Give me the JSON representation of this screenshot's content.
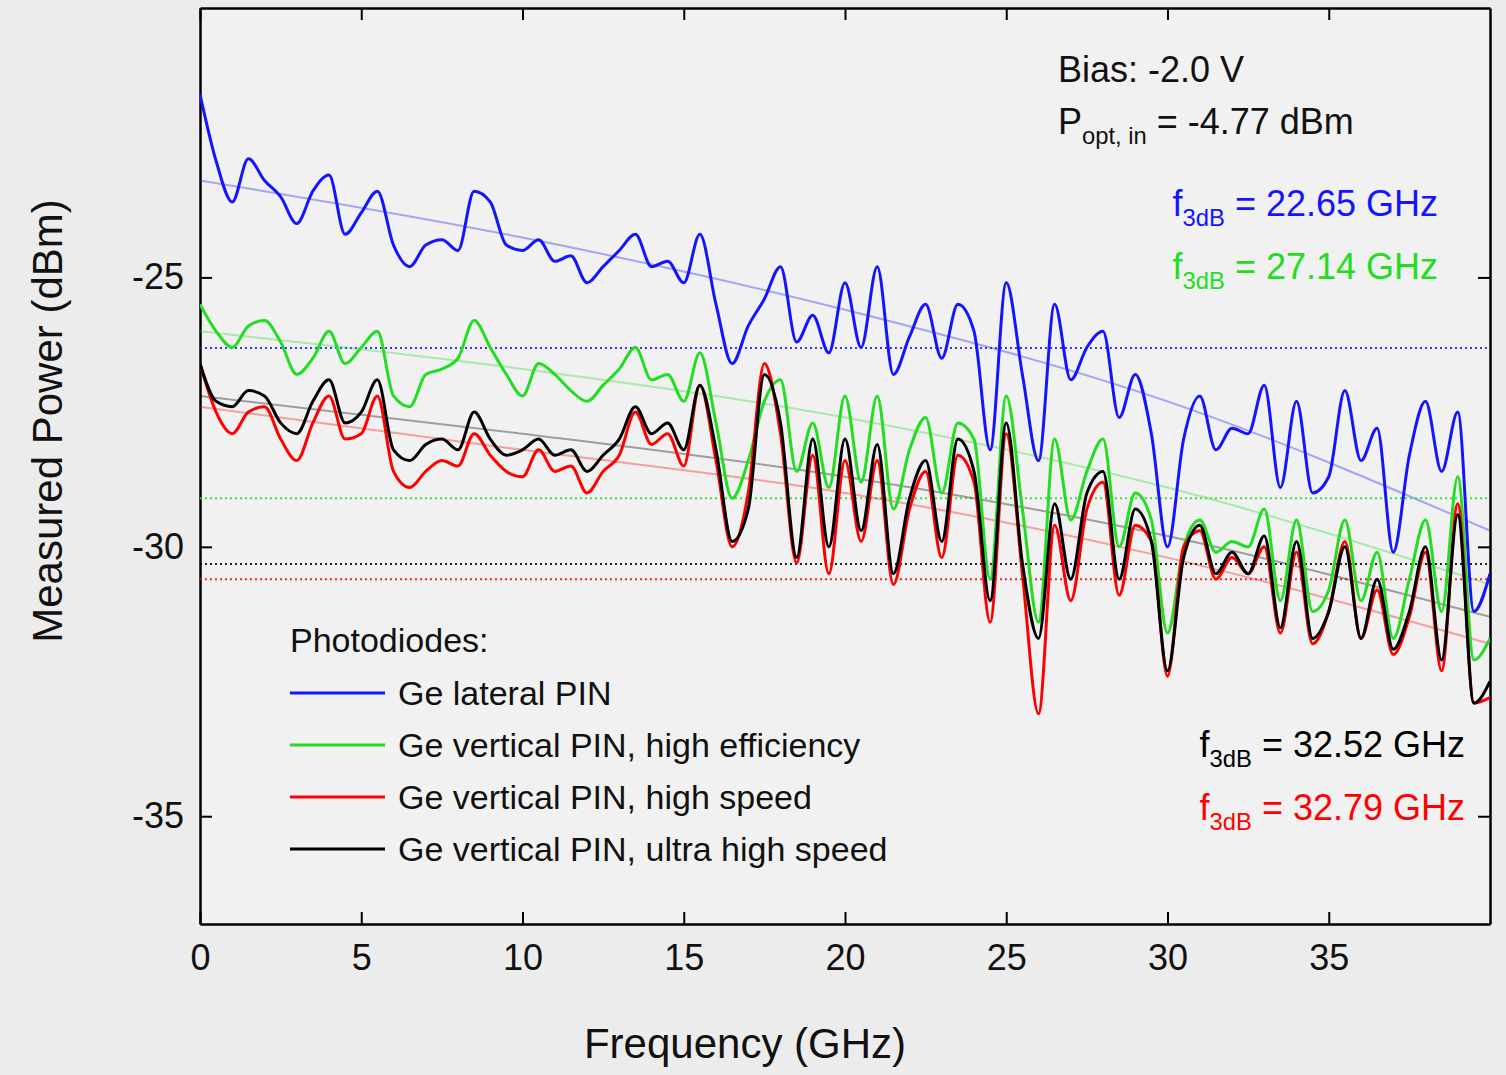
{
  "chart_data": {
    "type": "line",
    "xlabel": "Frequency (GHz)",
    "ylabel": "Measured Power (dBm)",
    "xlim": [
      0,
      40
    ],
    "ylim": [
      -37,
      -20
    ],
    "xticks": [
      0,
      5,
      10,
      15,
      20,
      25,
      30,
      35
    ],
    "yticks": [
      -35,
      -30,
      -25
    ],
    "grid": false,
    "legend": "bottom-left",
    "legend_title": "Photodiodes:",
    "annotations": [
      {
        "text": "Bias: -2.0 V"
      },
      {
        "text": "P",
        "sub": "opt, in",
        "rest": " = -4.77 dBm"
      }
    ],
    "x": [
      0,
      0.5,
      1,
      1.5,
      2,
      2.5,
      3,
      3.5,
      4,
      4.5,
      5,
      5.5,
      6,
      6.5,
      7,
      7.5,
      8,
      8.5,
      9,
      9.5,
      10,
      10.5,
      11,
      11.5,
      12,
      12.5,
      13,
      13.5,
      14,
      14.5,
      15,
      15.5,
      16,
      16.5,
      17,
      17.5,
      18,
      18.5,
      19,
      19.5,
      20,
      20.5,
      21,
      21.5,
      22,
      22.5,
      23,
      23.5,
      24,
      24.5,
      25,
      25.5,
      26,
      26.5,
      27,
      27.5,
      28,
      28.5,
      29,
      29.5,
      30,
      30.5,
      31,
      31.5,
      32,
      32.5,
      33,
      33.5,
      34,
      34.5,
      35,
      35.5,
      36,
      36.5,
      37,
      37.5,
      38,
      38.5,
      39,
      39.5,
      40
    ],
    "series": [
      {
        "name": "Ge lateral PIN",
        "color": "#1414ff",
        "line_style": "solid",
        "values": [
          -21.6,
          -22.84,
          -23.6,
          -22.8,
          -23.2,
          -23.5,
          -24.0,
          -23.4,
          -23.1,
          -24.2,
          -23.8,
          -23.4,
          -24.4,
          -24.8,
          -24.4,
          -24.3,
          -24.5,
          -23.4,
          -23.6,
          -24.4,
          -24.5,
          -24.3,
          -24.7,
          -24.6,
          -25.1,
          -24.8,
          -24.5,
          -24.2,
          -24.8,
          -24.7,
          -25.1,
          -24.2,
          -25.5,
          -26.6,
          -25.9,
          -25.4,
          -24.8,
          -26.2,
          -25.7,
          -26.4,
          -25.1,
          -26.3,
          -24.8,
          -26.8,
          -26.1,
          -25.5,
          -26.5,
          -25.5,
          -26.0,
          -28.2,
          -25.1,
          -26.8,
          -28.4,
          -25.5,
          -26.9,
          -26.3,
          -26.0,
          -27.6,
          -26.8,
          -27.9,
          -30.0,
          -28.0,
          -27.2,
          -28.2,
          -27.8,
          -27.9,
          -27.0,
          -28.9,
          -27.3,
          -29.0,
          -28.7,
          -27.1,
          -28.4,
          -27.8,
          -30.1,
          -28.3,
          -27.3,
          -28.6,
          -27.5,
          -31.2,
          -30.5
        ],
        "fit": {
          "x": [
            0,
            10,
            20,
            30,
            40
          ],
          "values": [
            -23.2,
            -24.26,
            -25.6,
            -27.3,
            -29.7
          ]
        },
        "level": -26.31,
        "f3dB": {
          "text": "f",
          "sub": "3dB",
          "rest": " = 22.65 GHz"
        }
      },
      {
        "name": "Ge vertical PIN, high efficiency",
        "color": "#22dd22",
        "line_style": "solid",
        "values": [
          -25.5,
          -26.0,
          -26.3,
          -25.9,
          -25.8,
          -26.2,
          -26.8,
          -26.5,
          -26.0,
          -26.6,
          -26.3,
          -26.0,
          -27.2,
          -27.4,
          -26.8,
          -26.7,
          -26.5,
          -25.8,
          -26.3,
          -26.8,
          -27.2,
          -26.6,
          -26.8,
          -27.1,
          -27.3,
          -27.0,
          -26.7,
          -26.3,
          -26.9,
          -26.8,
          -27.3,
          -26.4,
          -27.7,
          -29.1,
          -28.4,
          -27.3,
          -26.9,
          -28.6,
          -27.7,
          -28.9,
          -27.2,
          -28.8,
          -27.2,
          -29.3,
          -28.2,
          -27.6,
          -29.0,
          -27.7,
          -28.0,
          -30.6,
          -27.2,
          -29.3,
          -31.4,
          -28.0,
          -29.5,
          -28.6,
          -28.0,
          -30.0,
          -29.0,
          -29.5,
          -31.6,
          -30.0,
          -29.5,
          -30.1,
          -29.9,
          -30.0,
          -29.3,
          -31.0,
          -29.5,
          -31.2,
          -30.8,
          -29.5,
          -31.0,
          -30.1,
          -31.7,
          -30.6,
          -29.5,
          -31.2,
          -28.7,
          -32.1,
          -31.7
        ],
        "fit": {
          "x": [
            0,
            10,
            20,
            30,
            40
          ],
          "values": [
            -26.0,
            -26.7,
            -27.6,
            -28.9,
            -30.7
          ]
        },
        "level": -29.1,
        "f3dB": {
          "text": "f",
          "sub": "3dB",
          "rest": " = 27.14 GHz"
        }
      },
      {
        "name": "Ge vertical PIN, high speed",
        "color": "#ff0000",
        "line_style": "solid",
        "values": [
          -26.6,
          -27.5,
          -27.9,
          -27.5,
          -27.4,
          -28.0,
          -28.4,
          -27.7,
          -27.2,
          -28.0,
          -27.9,
          -27.2,
          -28.6,
          -28.9,
          -28.6,
          -28.4,
          -28.5,
          -27.9,
          -28.3,
          -28.6,
          -28.7,
          -28.2,
          -28.6,
          -28.5,
          -29.0,
          -28.6,
          -28.3,
          -27.5,
          -28.1,
          -27.9,
          -28.5,
          -27.0,
          -28.4,
          -30.0,
          -29.0,
          -26.6,
          -27.9,
          -30.3,
          -28.3,
          -30.5,
          -28.4,
          -29.9,
          -28.4,
          -30.7,
          -29.3,
          -28.6,
          -30.2,
          -28.3,
          -28.8,
          -31.4,
          -27.9,
          -30.5,
          -33.1,
          -29.6,
          -31.0,
          -29.3,
          -28.8,
          -30.9,
          -29.6,
          -29.9,
          -32.4,
          -30.0,
          -29.7,
          -30.6,
          -30.2,
          -30.5,
          -30.0,
          -31.6,
          -30.1,
          -31.8,
          -31.2,
          -29.9,
          -31.7,
          -30.8,
          -32.0,
          -31.3,
          -30.1,
          -32.3,
          -29.2,
          -32.9,
          -32.8
        ],
        "fit": {
          "x": [
            0,
            10,
            20,
            30,
            40
          ],
          "values": [
            -27.4,
            -28.2,
            -29.0,
            -30.2,
            -31.8
          ]
        },
        "level": -30.6,
        "f3dB": {
          "text": "f",
          "sub": "3dB",
          "rest": " = 32.79 GHz"
        }
      },
      {
        "name": "Ge vertical PIN, ultra high speed",
        "color": "#000000",
        "line_style": "solid",
        "values": [
          -26.6,
          -27.3,
          -27.4,
          -27.1,
          -27.2,
          -27.7,
          -27.9,
          -27.3,
          -26.9,
          -27.7,
          -27.5,
          -26.9,
          -28.2,
          -28.4,
          -28.1,
          -28.0,
          -28.2,
          -27.5,
          -28.0,
          -28.3,
          -28.2,
          -28.0,
          -28.3,
          -28.2,
          -28.6,
          -28.3,
          -28.0,
          -27.4,
          -27.9,
          -27.7,
          -28.2,
          -27.0,
          -28.2,
          -29.9,
          -29.3,
          -26.8,
          -27.7,
          -30.2,
          -28.0,
          -30.0,
          -28.0,
          -29.7,
          -28.1,
          -30.5,
          -29.1,
          -28.4,
          -29.9,
          -28.0,
          -28.6,
          -31.0,
          -27.7,
          -30.3,
          -31.7,
          -29.2,
          -30.6,
          -29.0,
          -28.6,
          -30.6,
          -29.3,
          -29.9,
          -32.3,
          -30.2,
          -29.6,
          -30.5,
          -30.1,
          -30.5,
          -29.8,
          -31.5,
          -29.9,
          -31.7,
          -31.2,
          -30.0,
          -31.7,
          -30.6,
          -31.9,
          -31.2,
          -30.0,
          -32.1,
          -29.4,
          -32.9,
          -32.5
        ],
        "fit": {
          "x": [
            0,
            10,
            20,
            30,
            40
          ],
          "values": [
            -27.2,
            -27.9,
            -28.7,
            -29.8,
            -31.3
          ]
        },
        "level": -30.32,
        "f3dB": {
          "text": "f",
          "sub": "3dB",
          "rest": " = 32.52 GHz"
        }
      }
    ]
  }
}
